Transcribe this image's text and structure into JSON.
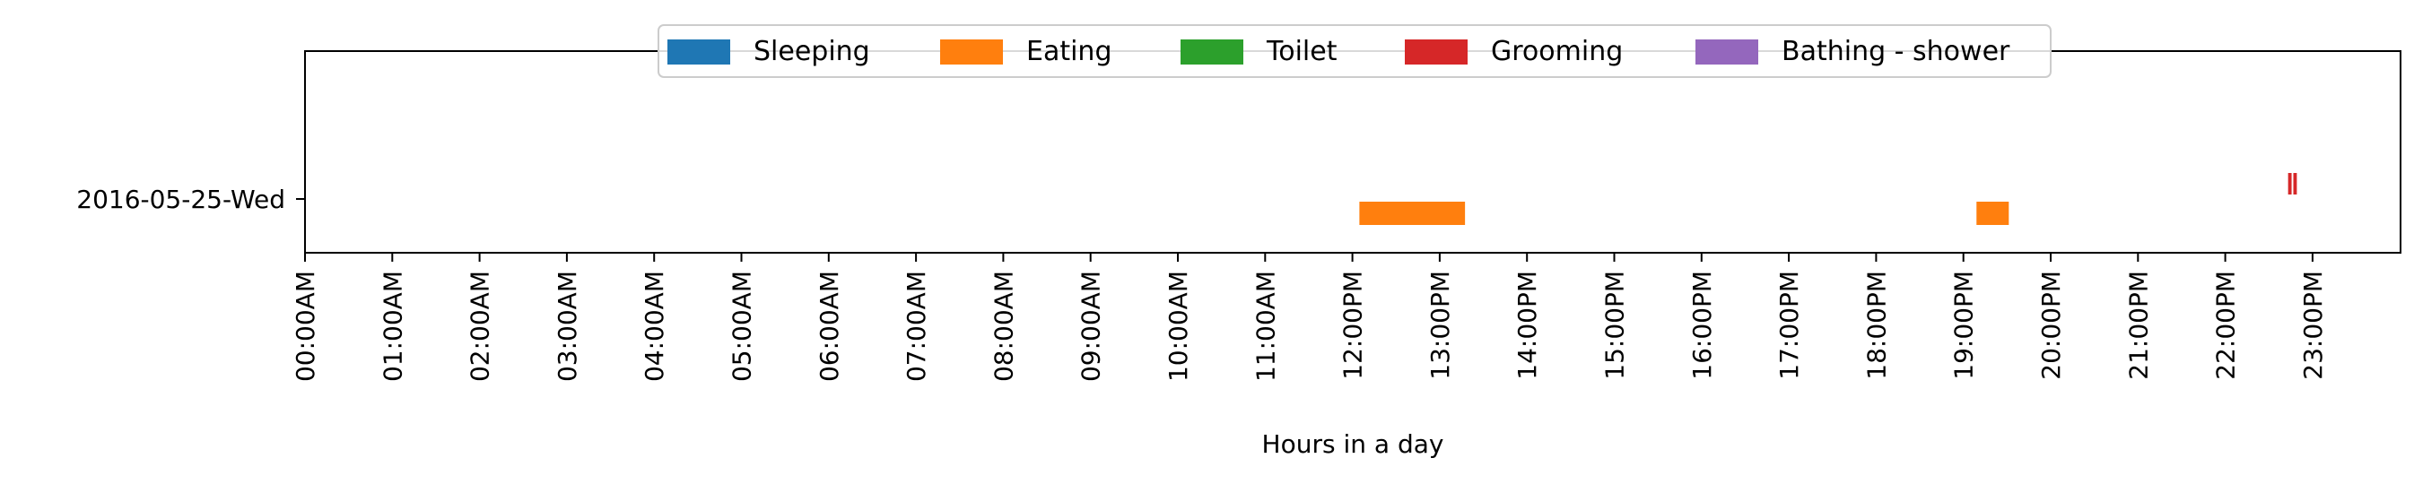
{
  "chart_data": {
    "type": "bar",
    "orientation": "horizontal-timeline",
    "title": "",
    "xlabel": "Hours in a day",
    "ylabel": "",
    "xlim": [
      0,
      24
    ],
    "x_ticks": [
      "00:00AM",
      "01:00AM",
      "02:00AM",
      "03:00AM",
      "04:00AM",
      "05:00AM",
      "06:00AM",
      "07:00AM",
      "08:00AM",
      "09:00AM",
      "10:00AM",
      "11:00AM",
      "12:00PM",
      "13:00PM",
      "14:00PM",
      "15:00PM",
      "16:00PM",
      "17:00PM",
      "18:00PM",
      "19:00PM",
      "20:00PM",
      "21:00PM",
      "22:00PM",
      "23:00PM"
    ],
    "categories": [
      "2016-05-25-Wed"
    ],
    "grid": false,
    "legend_position": "top-center",
    "series": [
      {
        "name": "Sleeping",
        "color": "#1f77b4",
        "segments": []
      },
      {
        "name": "Eating",
        "color": "#ff7f0e",
        "segments": [
          {
            "day": "2016-05-25-Wed",
            "start": 12.08,
            "end": 13.29
          },
          {
            "day": "2016-05-25-Wed",
            "start": 19.15,
            "end": 19.52
          }
        ]
      },
      {
        "name": "Toilet",
        "color": "#2ca02c",
        "segments": []
      },
      {
        "name": "Grooming",
        "color": "#d62728",
        "segments": [
          {
            "day": "2016-05-25-Wed",
            "start": 22.72,
            "end": 22.76
          },
          {
            "day": "2016-05-25-Wed",
            "start": 22.78,
            "end": 22.82
          }
        ]
      },
      {
        "name": "Bathing - shower",
        "color": "#9467bd",
        "segments": []
      }
    ]
  }
}
